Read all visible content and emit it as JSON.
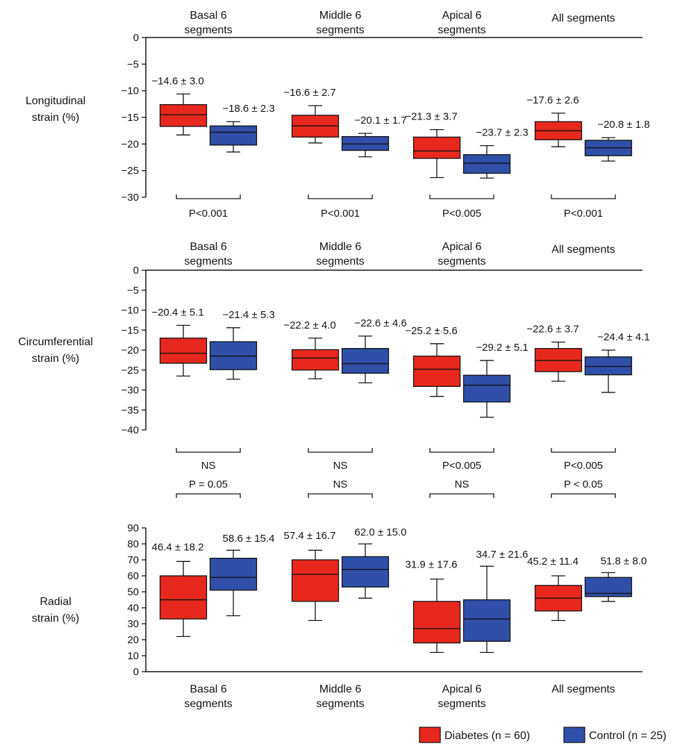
{
  "chart_data": [
    {
      "type": "box",
      "ylabel": [
        "Longitudinal",
        "strain (%)"
      ],
      "yticks": [
        0,
        -5,
        -10,
        -15,
        -20,
        -25,
        -30
      ],
      "ylim": [
        -30,
        0
      ],
      "category_label_position": "top",
      "categories": [
        [
          "Basal 6",
          "segments"
        ],
        [
          "Middle 6",
          "segments"
        ],
        [
          "Apical 6",
          "segments"
        ],
        [
          "All segments"
        ]
      ],
      "series": [
        {
          "name": "Diabetes",
          "boxes": [
            {
              "whisker_low": -18.3,
              "q1": -16.7,
              "median": -14.5,
              "q3": -12.6,
              "whisker_high": -10.6,
              "annotation": "−14.6 ± 3.0"
            },
            {
              "whisker_low": -19.8,
              "q1": -18.7,
              "median": -16.6,
              "q3": -14.6,
              "whisker_high": -12.8,
              "annotation": "−16.6 ± 2.7"
            },
            {
              "whisker_low": -26.3,
              "q1": -22.7,
              "median": -21.3,
              "q3": -18.7,
              "whisker_high": -17.3,
              "annotation": "−21.3 ± 3.7"
            },
            {
              "whisker_low": -20.5,
              "q1": -19.2,
              "median": -17.5,
              "q3": -15.8,
              "whisker_high": -14.2,
              "annotation": "−17.6 ± 2.6"
            }
          ]
        },
        {
          "name": "Control",
          "boxes": [
            {
              "whisker_low": -21.5,
              "q1": -20.2,
              "median": -17.8,
              "q3": -16.6,
              "whisker_high": -15.8,
              "annotation": "−18.6 ± 2.3"
            },
            {
              "whisker_low": -22.4,
              "q1": -21.2,
              "median": -20.0,
              "q3": -18.6,
              "whisker_high": -18.0,
              "annotation": "−20.1 ± 1.7"
            },
            {
              "whisker_low": -26.4,
              "q1": -25.5,
              "median": -23.6,
              "q3": -22.0,
              "whisker_high": -20.3,
              "annotation": "−23.7 ± 2.3"
            },
            {
              "whisker_low": -23.2,
              "q1": -22.2,
              "median": -20.7,
              "q3": -19.3,
              "whisker_high": -18.8,
              "annotation": "−20.8 ± 1.8"
            }
          ]
        }
      ],
      "p_values": [
        {
          "text": "P<0.001"
        },
        {
          "text": "P<0.001"
        },
        {
          "text": "P<0.005"
        },
        {
          "text": "P<0.001"
        }
      ]
    },
    {
      "type": "box",
      "ylabel": [
        "Circumferential",
        "strain (%)"
      ],
      "yticks": [
        0,
        -5,
        -10,
        -15,
        -20,
        -25,
        -30,
        -35,
        -40
      ],
      "ylim": [
        -40,
        0
      ],
      "category_label_position": "top",
      "categories": [
        [
          "Basal 6",
          "segments"
        ],
        [
          "Middle 6",
          "segments"
        ],
        [
          "Apical 6",
          "segments"
        ],
        [
          "All segments"
        ]
      ],
      "series": [
        {
          "name": "Diabetes",
          "boxes": [
            {
              "whisker_low": -26.5,
              "q1": -23.3,
              "median": -20.8,
              "q3": -17.0,
              "whisker_high": -13.8,
              "annotation": "−20.4 ± 5.1"
            },
            {
              "whisker_low": -27.2,
              "q1": -25.0,
              "median": -22.0,
              "q3": -19.9,
              "whisker_high": -17.0,
              "annotation": "−22.2 ± 4.0"
            },
            {
              "whisker_low": -31.6,
              "q1": -29.1,
              "median": -24.8,
              "q3": -21.5,
              "whisker_high": -18.4,
              "annotation": "−25.2 ± 5.6"
            },
            {
              "whisker_low": -27.8,
              "q1": -25.4,
              "median": -22.6,
              "q3": -19.6,
              "whisker_high": -18.0,
              "annotation": "−22.6 ± 3.7"
            }
          ]
        },
        {
          "name": "Control",
          "boxes": [
            {
              "whisker_low": -27.3,
              "q1": -24.9,
              "median": -21.5,
              "q3": -17.9,
              "whisker_high": -14.4,
              "annotation": "−21.4 ± 5.3"
            },
            {
              "whisker_low": -28.2,
              "q1": -25.8,
              "median": -23.4,
              "q3": -19.6,
              "whisker_high": -16.5,
              "annotation": "−22.6 ± 4.6"
            },
            {
              "whisker_low": -36.8,
              "q1": -33.0,
              "median": -28.8,
              "q3": -26.3,
              "whisker_high": -22.6,
              "annotation": "−29.2 ± 5.1"
            },
            {
              "whisker_low": -30.6,
              "q1": -26.2,
              "median": -24.1,
              "q3": -21.7,
              "whisker_high": -20.0,
              "annotation": "−24.4 ± 4.1"
            }
          ]
        }
      ],
      "p_values": [
        {
          "text": "NS"
        },
        {
          "text": "NS"
        },
        {
          "text": "P<0.005"
        },
        {
          "text": "P<0.005"
        }
      ]
    },
    {
      "type": "box",
      "ylabel": [
        "Radial",
        "strain (%)"
      ],
      "yticks": [
        90,
        80,
        70,
        60,
        50,
        40,
        30,
        20,
        10,
        0
      ],
      "ylim": [
        0,
        90
      ],
      "category_label_position": "bottom",
      "categories": [
        [
          "Basal 6",
          "segments"
        ],
        [
          "Middle 6",
          "segments"
        ],
        [
          "Apical 6",
          "segments"
        ],
        [
          "All segments"
        ]
      ],
      "series": [
        {
          "name": "Diabetes",
          "boxes": [
            {
              "whisker_low": 22,
              "q1": 33,
              "median": 45,
              "q3": 60,
              "whisker_high": 69,
              "annotation": "46.4 ± 18.2"
            },
            {
              "whisker_low": 32,
              "q1": 44,
              "median": 61,
              "q3": 70,
              "whisker_high": 76,
              "annotation": "57.4 ± 16.7"
            },
            {
              "whisker_low": 12,
              "q1": 18,
              "median": 27,
              "q3": 44,
              "whisker_high": 58,
              "annotation": "31.9 ± 17.6"
            },
            {
              "whisker_low": 32,
              "q1": 38,
              "median": 46,
              "q3": 54,
              "whisker_high": 60,
              "annotation": "45.2 ± 11.4"
            }
          ]
        },
        {
          "name": "Control",
          "boxes": [
            {
              "whisker_low": 35,
              "q1": 51,
              "median": 59,
              "q3": 71,
              "whisker_high": 76,
              "annotation": "58.6 ± 15.4"
            },
            {
              "whisker_low": 46,
              "q1": 53,
              "median": 64,
              "q3": 72,
              "whisker_high": 80,
              "annotation": "62.0 ± 15.0"
            },
            {
              "whisker_low": 12,
              "q1": 19,
              "median": 33,
              "q3": 45,
              "whisker_high": 66,
              "annotation": "34.7 ± 21.6"
            },
            {
              "whisker_low": 44,
              "q1": 47,
              "median": 49,
              "q3": 59,
              "whisker_high": 62,
              "annotation": "51.8 ± 8.0"
            }
          ]
        }
      ],
      "p_values": [
        {
          "text": "P = 0.05"
        },
        {
          "text": "NS"
        },
        {
          "text": "NS"
        },
        {
          "text": "P < 0.05"
        }
      ]
    }
  ],
  "legend": {
    "placement": "bottom-right",
    "items": [
      {
        "label": "Diabetes (n = 60)",
        "color": "#e8281e"
      },
      {
        "label": "Control (n = 25)",
        "color": "#2f4fa8"
      }
    ]
  },
  "colors": {
    "diabetes": "#e8281e",
    "control": "#2f4fa8",
    "axis": "#111111"
  }
}
